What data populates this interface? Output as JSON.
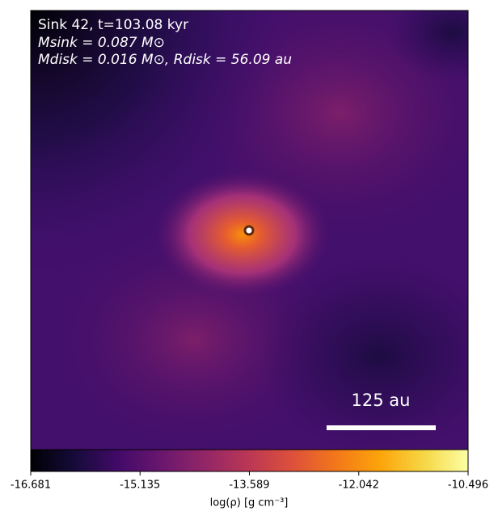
{
  "chart_data": {
    "type": "density-map",
    "annotations": [
      "Sink 42, t=103.08 kyr",
      "Msink = 0.087 M⊙",
      "Mdisk = 0.016 M⊙, Rdisk = 56.09 au"
    ],
    "scale_bar_label": "125 au",
    "colorbar": {
      "label": "log(ρ) [g cm⁻³]",
      "lim": [
        -16.681,
        -10.496
      ],
      "ticks": [
        -16.681,
        -15.135,
        -13.589,
        -12.042,
        -10.496
      ],
      "colormap": "inferno"
    }
  }
}
